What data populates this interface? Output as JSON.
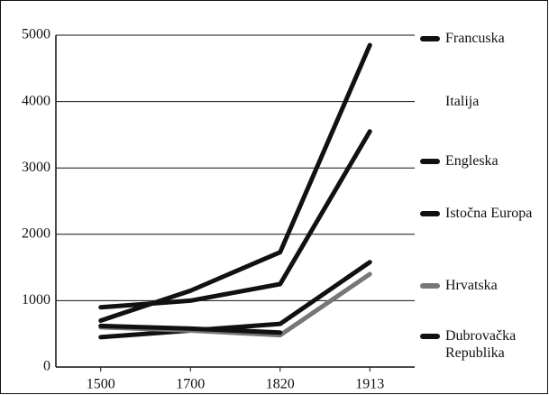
{
  "chart_data": {
    "type": "line",
    "categories": [
      "1500",
      "1700",
      "1820",
      "1913"
    ],
    "series": [
      {
        "name": "Francuska",
        "color": "#111111",
        "values": [
          900,
          1000,
          1250,
          3550
        ]
      },
      {
        "name": "Italija",
        "color": "#ffffff",
        "values": [
          null,
          null,
          null,
          null
        ]
      },
      {
        "name": "Engleska",
        "color": "#111111",
        "values": [
          700,
          1150,
          1730,
          4850
        ]
      },
      {
        "name": "Istočna Europa",
        "color": "#111111",
        "values": [
          450,
          550,
          650,
          1580
        ]
      },
      {
        "name": "Hrvatska",
        "color": "#777777",
        "values": [
          600,
          550,
          480,
          1400
        ]
      },
      {
        "name": "Dubrovačka Republika",
        "color": "#111111",
        "values": [
          620,
          580,
          520,
          null
        ]
      }
    ],
    "ylim": [
      0,
      5000
    ],
    "yticks": [
      0,
      1000,
      2000,
      3000,
      4000,
      5000
    ],
    "grid": true
  }
}
